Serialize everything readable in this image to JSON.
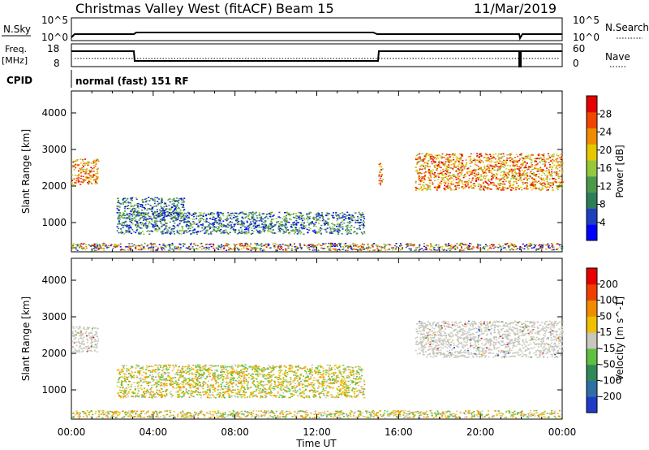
{
  "header": {
    "title": "Christmas Valley West (fitACF)",
    "beam": "Beam 15",
    "date": "11/Mar/2019"
  },
  "top_panel": {
    "nsky_label": "N.Sky",
    "nsky_ticks": [
      "10^5",
      "10^0"
    ],
    "nsearch_label": "N.Search",
    "nsearch_ticks": [
      "10^5",
      "10^0"
    ],
    "freq_label": "Freq.",
    "freq_unit": "[MHz]",
    "freq_ticks": [
      "18",
      "8"
    ],
    "nave_label": "Nave",
    "nave_ticks": [
      "60",
      "0"
    ],
    "cpid_label": "CPID",
    "cpid_text": "normal (fast) 151 RF"
  },
  "colorbars": {
    "power": {
      "label": "Power [dB]",
      "ticks": [
        "28",
        "24",
        "20",
        "16",
        "12",
        "8",
        "4"
      ],
      "colors": [
        "#0000ff",
        "#1f3fbf",
        "#2e7d5a",
        "#4a9a4a",
        "#96c83c",
        "#e6c800",
        "#f08c00",
        "#f04600",
        "#e60000"
      ]
    },
    "velocity": {
      "label": "Velocity [m s^-1]",
      "ticks": [
        "200",
        "100",
        "50",
        "15",
        "-15",
        "-50",
        "-100",
        "-200"
      ],
      "colors": [
        "#1e3cc8",
        "#2f6fa6",
        "#2e8b57",
        "#60c040",
        "#c8c8c0",
        "#f0c000",
        "#f08c00",
        "#f04000",
        "#e60000"
      ]
    }
  },
  "chart_data": [
    {
      "type": "heatmap",
      "name": "power",
      "ylabel": "Slant Range [km]",
      "ylim": [
        200,
        4600
      ],
      "xlim": [
        "00:00",
        "24:00"
      ],
      "yticks": [
        1000,
        2000,
        3000,
        4000
      ],
      "regions": [
        {
          "t": [
            0.0,
            1.3
          ],
          "r": [
            2050,
            2750
          ],
          "level": "high"
        },
        {
          "t": [
            2.2,
            5.5
          ],
          "r": [
            1100,
            1700
          ],
          "level": "low"
        },
        {
          "t": [
            2.2,
            14.3
          ],
          "r": [
            700,
            1300
          ],
          "level": "low-mid"
        },
        {
          "t": [
            15.0,
            15.2
          ],
          "r": [
            2000,
            2700
          ],
          "level": "high"
        },
        {
          "t": [
            16.8,
            24.0
          ],
          "r": [
            1900,
            2900
          ],
          "level": "high"
        },
        {
          "t": [
            0.0,
            24.0
          ],
          "r": [
            250,
            450
          ],
          "level": "mixed"
        }
      ]
    },
    {
      "type": "heatmap",
      "name": "velocity",
      "ylabel": "Slant Range [km]",
      "ylim": [
        200,
        4600
      ],
      "xlim": [
        "00:00",
        "24:00"
      ],
      "yticks": [
        1000,
        2000,
        3000,
        4000
      ],
      "regions": [
        {
          "t": [
            0.0,
            1.3
          ],
          "r": [
            2050,
            2750
          ],
          "level": "ground"
        },
        {
          "t": [
            2.2,
            14.3
          ],
          "r": [
            800,
            1700
          ],
          "level": "positive-negative"
        },
        {
          "t": [
            16.8,
            24.0
          ],
          "r": [
            1900,
            2900
          ],
          "level": "ground"
        },
        {
          "t": [
            0.0,
            24.0
          ],
          "r": [
            250,
            450
          ],
          "level": "mixed"
        }
      ]
    }
  ],
  "x_axis": {
    "ticks": [
      "00:00",
      "04:00",
      "08:00",
      "12:00",
      "16:00",
      "20:00",
      "00:00"
    ],
    "label": "Time UT"
  }
}
